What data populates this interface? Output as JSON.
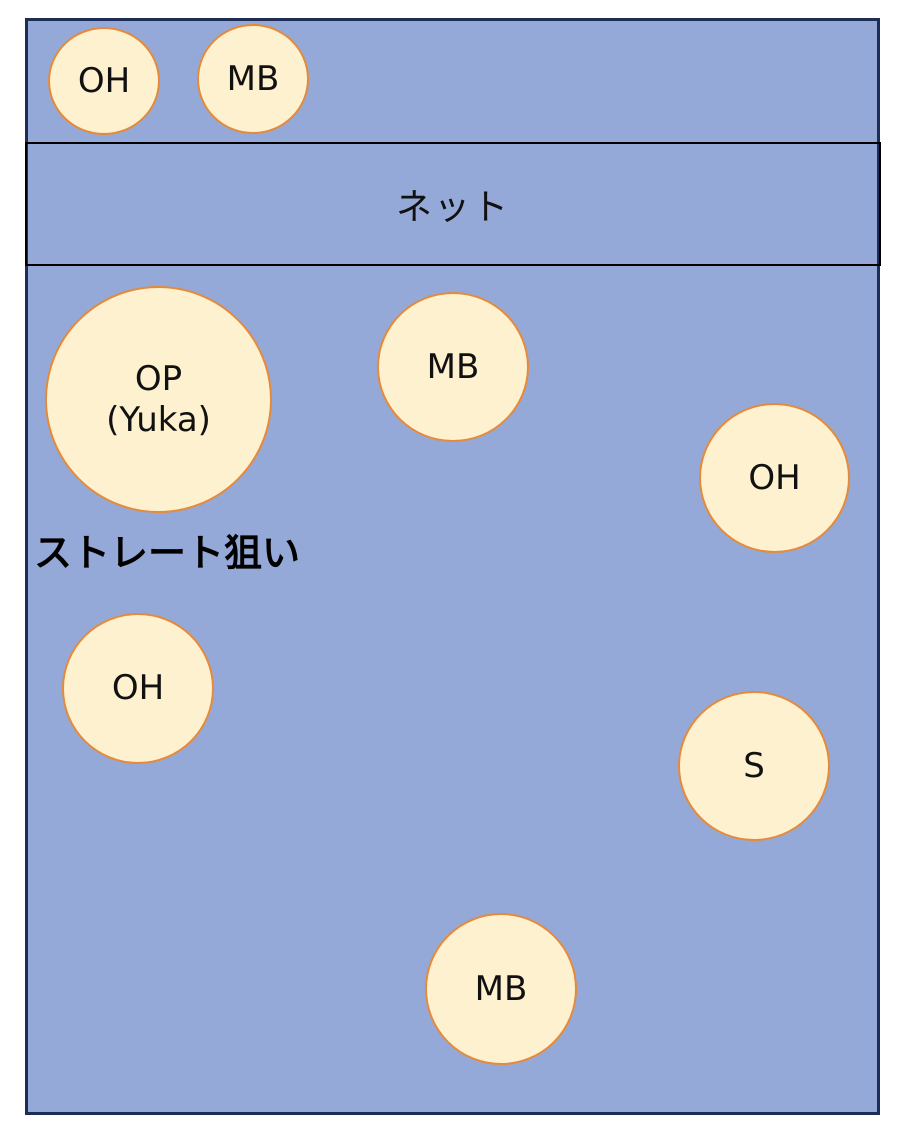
{
  "diagram": {
    "net_label": "ネット",
    "strategy_label": "ストレート狙い",
    "opponent_side": [
      {
        "id": "opp-oh",
        "label": "OH"
      },
      {
        "id": "opp-mb",
        "label": "MB"
      }
    ],
    "team_side": [
      {
        "id": "op",
        "label": "OP",
        "sublabel": "(Yuka)"
      },
      {
        "id": "mb-front",
        "label": "MB"
      },
      {
        "id": "oh-right",
        "label": "OH"
      },
      {
        "id": "oh-left",
        "label": "OH"
      },
      {
        "id": "setter",
        "label": "S"
      },
      {
        "id": "mb-back",
        "label": "MB"
      }
    ],
    "colors": {
      "court": "#95a9d8",
      "court_border": "#1e2d55",
      "player_fill": "#fdf1cf",
      "player_border": "#e58a3a"
    }
  }
}
